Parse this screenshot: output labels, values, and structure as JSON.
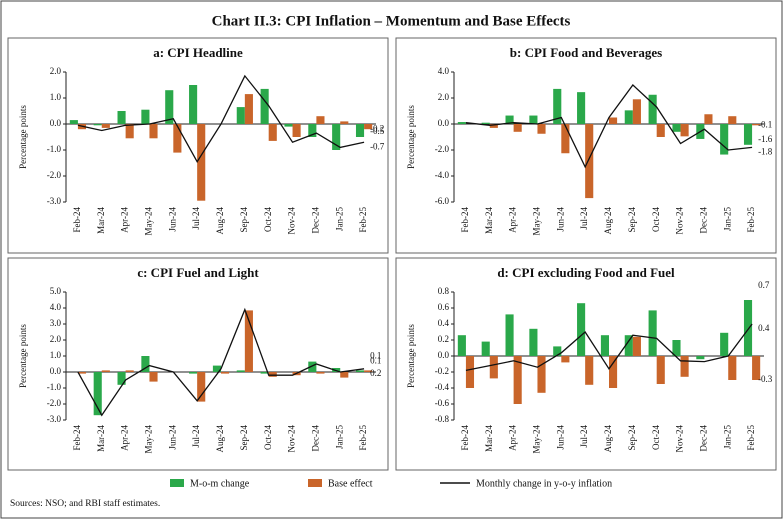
{
  "title": "Chart II.3: CPI Inflation – Momentum and Base Effects",
  "legend": [
    {
      "name": "M-o-m change",
      "color": "#2aa84a",
      "type": "bar"
    },
    {
      "name": "Base effect",
      "color": "#c9652a",
      "type": "bar"
    },
    {
      "name": "Monthly change in y-o-y inflation",
      "color": "#111111",
      "type": "line"
    }
  ],
  "source": "Sources: NSO; and RBI staff estimates.",
  "chart_data": [
    {
      "type": "bar",
      "title": "a: CPI Headline",
      "ylabel": "Percentage points",
      "data_labels": "last",
      "categories": [
        "Feb-24",
        "Mar-24",
        "Apr-24",
        "May-24",
        "Jun-24",
        "Jul-24",
        "Aug-24",
        "Sep-24",
        "Oct-24",
        "Nov-24",
        "Dec-24",
        "Jan-25",
        "Feb-25"
      ],
      "ylim": [
        -3,
        2
      ],
      "yticks": [
        {
          "value": -3,
          "label": "-3.0"
        },
        {
          "value": -2,
          "label": "-2.0"
        },
        {
          "value": -1,
          "label": "-1.0"
        },
        {
          "value": 0,
          "label": "0.0"
        },
        {
          "value": 1,
          "label": "1.0"
        },
        {
          "value": 2,
          "label": "2.0"
        }
      ],
      "series": [
        {
          "values": [
            0.15,
            -0.05,
            0.5,
            0.55,
            1.3,
            1.5,
            0.0,
            0.65,
            1.35,
            -0.1,
            -0.5,
            -1.0,
            -0.5
          ]
        },
        {
          "values": [
            -0.2,
            -0.15,
            -0.55,
            -0.55,
            -1.1,
            -2.95,
            0.0,
            1.15,
            -0.65,
            -0.5,
            0.3,
            0.1,
            -0.2
          ]
        },
        {
          "values": [
            -0.05,
            -0.25,
            -0.05,
            0.0,
            0.2,
            -1.45,
            0.0,
            1.85,
            0.7,
            -0.7,
            -0.35,
            -0.9,
            -0.7
          ]
        }
      ]
    },
    {
      "type": "bar",
      "title": "b: CPI Food and Beverages",
      "ylabel": "Percentage points",
      "data_labels": "last",
      "categories": [
        "Feb-24",
        "Mar-24",
        "Apr-24",
        "May-24",
        "Jun-24",
        "Jul-24",
        "Aug-24",
        "Sep-24",
        "Oct-24",
        "Nov-24",
        "Dec-24",
        "Jan-25",
        "Feb-25"
      ],
      "ylim": [
        -6,
        4
      ],
      "yticks": [
        {
          "value": -6,
          "label": "-6.0"
        },
        {
          "value": -4,
          "label": "-4.0"
        },
        {
          "value": -2,
          "label": "-2.0"
        },
        {
          "value": 0,
          "label": "0.0"
        },
        {
          "value": 2,
          "label": "2.0"
        },
        {
          "value": 4,
          "label": "4.0"
        }
      ],
      "series": [
        {
          "values": [
            0.15,
            0.1,
            0.65,
            0.65,
            2.7,
            2.45,
            0.0,
            1.05,
            2.25,
            -0.6,
            -1.15,
            -2.35,
            -1.6
          ]
        },
        {
          "values": [
            0.0,
            -0.3,
            -0.6,
            -0.75,
            -2.25,
            -5.7,
            0.5,
            1.9,
            -1.0,
            -0.95,
            0.75,
            0.6,
            -0.1
          ]
        },
        {
          "values": [
            0.1,
            -0.1,
            0.1,
            0.0,
            0.5,
            -3.3,
            0.5,
            3.0,
            1.3,
            -1.5,
            -0.4,
            -2.0,
            -1.8
          ]
        }
      ]
    },
    {
      "type": "bar",
      "title": "c: CPI Fuel and Light",
      "ylabel": "Percentage points",
      "data_labels": "last",
      "categories": [
        "Feb-24",
        "Mar-24",
        "Apr-24",
        "May-24",
        "Jun-24",
        "Jul-24",
        "Aug-24",
        "Sep-24",
        "Oct-24",
        "Nov-24",
        "Dec-24",
        "Jan-25",
        "Feb-25"
      ],
      "ylim": [
        -3,
        5
      ],
      "yticks": [
        {
          "value": -3,
          "label": "-3.0"
        },
        {
          "value": -2,
          "label": "-2.0"
        },
        {
          "value": -1,
          "label": "-1.0"
        },
        {
          "value": 0,
          "label": "0.0"
        },
        {
          "value": 1,
          "label": "1.0"
        },
        {
          "value": 2,
          "label": "2.0"
        },
        {
          "value": 3,
          "label": "3.0"
        },
        {
          "value": 4,
          "label": "4.0"
        },
        {
          "value": 5,
          "label": "5.0"
        }
      ],
      "series": [
        {
          "values": [
            0.0,
            -2.7,
            -0.8,
            1.0,
            0.0,
            -0.1,
            0.4,
            0.1,
            -0.1,
            0.0,
            0.65,
            0.25,
            0.1
          ]
        },
        {
          "values": [
            -0.1,
            0.1,
            0.1,
            -0.6,
            0.0,
            -1.85,
            -0.1,
            3.85,
            -0.3,
            -0.2,
            -0.1,
            -0.35,
            0.1
          ]
        },
        {
          "values": [
            0.0,
            -2.7,
            -0.5,
            0.4,
            0.0,
            -1.8,
            0.2,
            3.9,
            -0.2,
            -0.2,
            0.5,
            0.0,
            0.2
          ]
        }
      ]
    },
    {
      "type": "bar",
      "title": "d: CPI excluding Food and Fuel",
      "ylabel": "Percentage points",
      "data_labels": "last",
      "categories": [
        "Feb-24",
        "Mar-24",
        "Apr-24",
        "May-24",
        "Jun-24",
        "Jul-24",
        "Aug-24",
        "Sep-24",
        "Oct-24",
        "Nov-24",
        "Dec-24",
        "Jan-25",
        "Feb-25"
      ],
      "ylim": [
        -0.8,
        0.8
      ],
      "yticks": [
        -0.8,
        -0.6,
        -0.4,
        -0.2,
        {
          "value": 0,
          "label": "0.0"
        },
        0.2,
        0.4,
        0.6,
        0.8
      ],
      "series": [
        {
          "values": [
            0.26,
            0.18,
            0.52,
            0.34,
            0.12,
            0.66,
            0.26,
            0.26,
            0.57,
            0.2,
            -0.04,
            0.29,
            0.7
          ]
        },
        {
          "values": [
            -0.4,
            -0.28,
            -0.6,
            -0.46,
            -0.08,
            -0.36,
            -0.4,
            0.24,
            -0.35,
            -0.26,
            0.0,
            -0.3,
            -0.3
          ]
        },
        {
          "values": [
            -0.18,
            -0.12,
            -0.06,
            -0.14,
            0.04,
            0.3,
            -0.16,
            0.26,
            0.22,
            -0.06,
            -0.07,
            0.0,
            0.4
          ]
        }
      ]
    }
  ]
}
